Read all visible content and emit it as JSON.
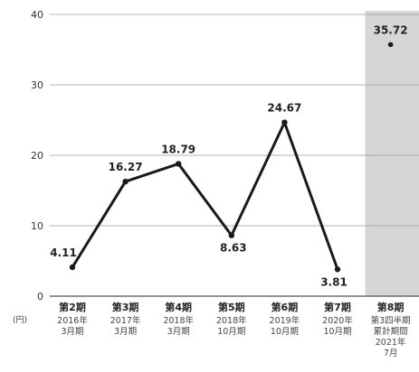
{
  "chart_data": {
    "type": "line",
    "unit_label": "(円)",
    "ylim": [
      0,
      40
    ],
    "y_ticks": [
      "0",
      "10",
      "20",
      "30",
      "40"
    ],
    "grid": true,
    "categories": [
      {
        "main": "第2期",
        "sub": [
          "2016年",
          "3月期"
        ]
      },
      {
        "main": "第3期",
        "sub": [
          "2017年",
          "3月期"
        ]
      },
      {
        "main": "第4期",
        "sub": [
          "2018年",
          "3月期"
        ]
      },
      {
        "main": "第5期",
        "sub": [
          "2018年",
          "10月期"
        ]
      },
      {
        "main": "第6期",
        "sub": [
          "2019年",
          "10月期"
        ]
      },
      {
        "main": "第7期",
        "sub": [
          "2020年",
          "10月期"
        ]
      },
      {
        "main": "第8期",
        "sub": [
          "第3四半期",
          "累計期間",
          "2021年",
          "7月"
        ]
      }
    ],
    "series": [
      {
        "values": [
          4.11,
          16.27,
          18.79,
          8.63,
          24.67,
          3.81,
          35.72
        ],
        "value_labels": [
          "4.11",
          "16.27",
          "18.79",
          "8.63",
          "24.67",
          "3.81",
          "35.72"
        ],
        "connected_points": 6,
        "highlighted_index": 6
      }
    ]
  }
}
